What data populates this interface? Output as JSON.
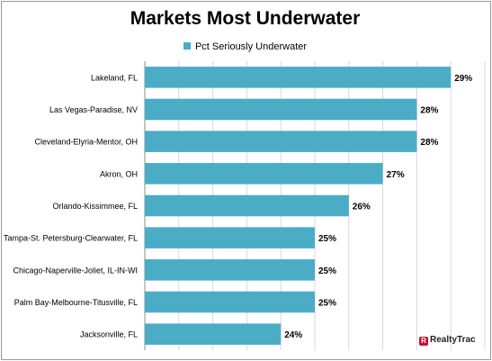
{
  "chart_data": {
    "type": "bar",
    "orientation": "horizontal",
    "title": "Markets Most Underwater",
    "series": [
      {
        "name": "Pct Seriously Underwater",
        "color": "#4bacc6",
        "values": [
          29,
          28,
          28,
          27,
          26,
          25,
          25,
          25,
          24
        ]
      }
    ],
    "categories": [
      "Lakeland, FL",
      "Las Vegas-Paradise, NV",
      "Cleveland-Elyria-Mentor, OH",
      "Akron, OH",
      "Orlando-Kissimmee, FL",
      "Tampa-St. Petersburg-Clearwater, FL",
      "Chicago-Naperville-Joliet, IL-IN-WI",
      "Palm Bay-Melbourne-Titusville, FL",
      "Jacksonville, FL"
    ],
    "data_labels": [
      "29%",
      "28%",
      "28%",
      "27%",
      "26%",
      "25%",
      "25%",
      "25%",
      "24%"
    ],
    "xlim": [
      20,
      30
    ],
    "grid": true,
    "legend_position": "top"
  },
  "logo_text": "RealtyTrac"
}
